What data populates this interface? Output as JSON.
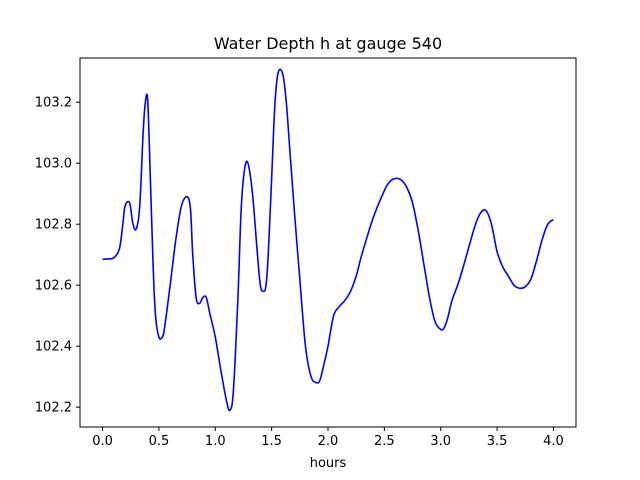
{
  "chart_data": {
    "type": "line",
    "title": "Water Depth h at gauge 540",
    "xlabel": "hours",
    "ylabel": "",
    "xlim": [
      -0.2,
      4.2
    ],
    "ylim": [
      102.135,
      103.345
    ],
    "xticks": [
      0.0,
      0.5,
      1.0,
      1.5,
      2.0,
      2.5,
      3.0,
      3.5,
      4.0
    ],
    "xtick_labels": [
      "0.0",
      "0.5",
      "1.0",
      "1.5",
      "2.0",
      "2.5",
      "3.0",
      "3.5",
      "4.0"
    ],
    "yticks": [
      102.2,
      102.4,
      102.6,
      102.8,
      103.0,
      103.2
    ],
    "ytick_labels": [
      "102.2",
      "102.4",
      "102.6",
      "102.8",
      "103.0",
      "103.2"
    ],
    "grid": false,
    "line_color": "#0000ff",
    "series": [
      {
        "x": [
          0.0,
          0.05,
          0.1,
          0.15,
          0.18,
          0.2,
          0.24,
          0.27,
          0.3,
          0.33,
          0.36,
          0.38,
          0.4,
          0.42,
          0.45,
          0.47,
          0.5,
          0.53,
          0.55,
          0.6,
          0.65,
          0.7,
          0.75,
          0.78,
          0.8,
          0.83,
          0.86,
          0.89,
          0.92,
          0.95,
          1.0,
          1.05,
          1.1,
          1.13,
          1.16,
          1.2,
          1.23,
          1.26,
          1.29,
          1.33,
          1.37,
          1.4,
          1.43,
          1.45,
          1.47,
          1.5,
          1.53,
          1.56,
          1.6,
          1.63,
          1.66,
          1.7,
          1.75,
          1.8,
          1.85,
          1.9,
          1.93,
          1.97,
          2.0,
          2.05,
          2.1,
          2.15,
          2.2,
          2.25,
          2.3,
          2.4,
          2.5,
          2.55,
          2.6,
          2.65,
          2.7,
          2.75,
          2.8,
          2.85,
          2.9,
          2.95,
          3.0,
          3.03,
          3.06,
          3.1,
          3.15,
          3.2,
          3.3,
          3.35,
          3.4,
          3.45,
          3.5,
          3.55,
          3.6,
          3.65,
          3.7,
          3.75,
          3.8,
          3.85,
          3.9,
          3.95,
          4.0
        ],
        "y": [
          102.685,
          102.686,
          102.69,
          102.72,
          102.8,
          102.86,
          102.87,
          102.8,
          102.785,
          102.86,
          103.1,
          103.2,
          103.21,
          103.0,
          102.65,
          102.5,
          102.43,
          102.43,
          102.46,
          102.6,
          102.75,
          102.86,
          102.89,
          102.85,
          102.7,
          102.56,
          102.54,
          102.56,
          102.56,
          102.51,
          102.43,
          102.32,
          102.22,
          102.19,
          102.25,
          102.55,
          102.85,
          102.98,
          103.0,
          102.9,
          102.72,
          102.6,
          102.58,
          102.6,
          102.7,
          102.95,
          103.2,
          103.3,
          103.29,
          103.2,
          103.05,
          102.85,
          102.62,
          102.4,
          102.3,
          102.28,
          102.29,
          102.35,
          102.4,
          102.5,
          102.53,
          102.55,
          102.58,
          102.63,
          102.7,
          102.82,
          102.91,
          102.94,
          102.95,
          102.945,
          102.92,
          102.87,
          102.78,
          102.67,
          102.56,
          102.48,
          102.455,
          102.46,
          102.49,
          102.55,
          102.6,
          102.66,
          102.79,
          102.835,
          102.845,
          102.8,
          102.71,
          102.66,
          102.63,
          102.6,
          102.59,
          102.595,
          102.62,
          102.68,
          102.75,
          102.8,
          102.815
        ]
      }
    ]
  }
}
